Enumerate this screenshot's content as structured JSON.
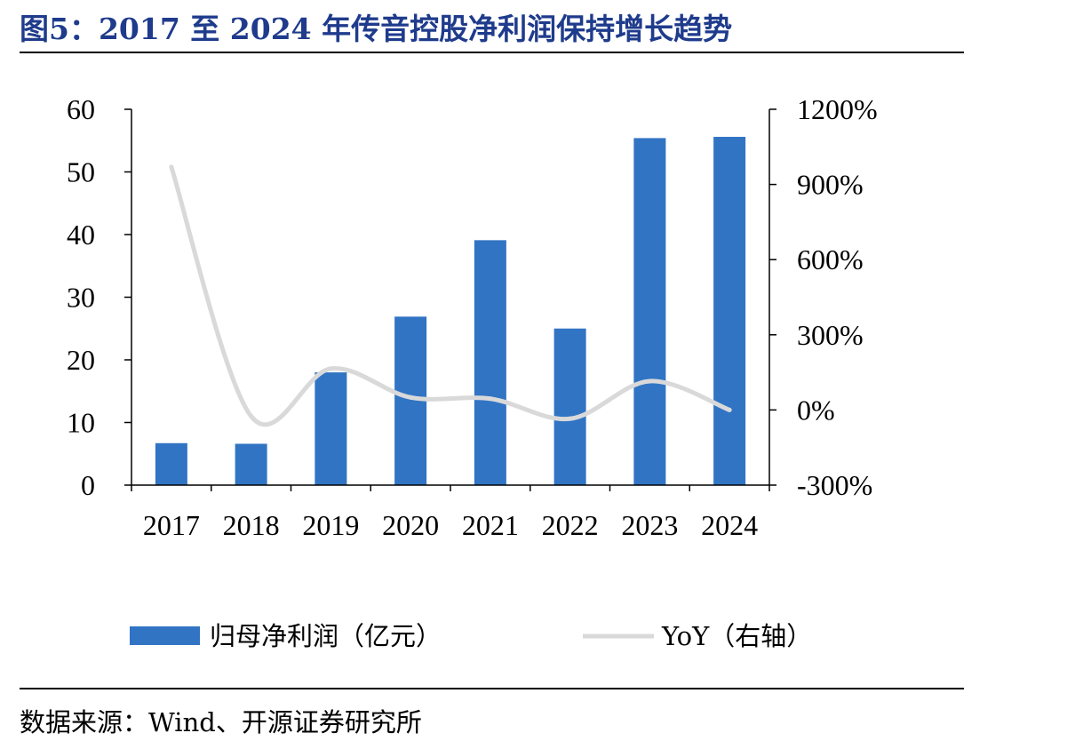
{
  "title": "图5：2017 至 2024 年传音控股净利润保持增长趋势",
  "source": "数据来源：Wind、开源证券研究所",
  "chart_data": {
    "type": "bar",
    "categories": [
      "2017",
      "2018",
      "2019",
      "2020",
      "2021",
      "2022",
      "2023",
      "2024"
    ],
    "series": [
      {
        "name": "归母净利润（亿元）",
        "type": "bar",
        "axis": "left",
        "color": "#3174c4",
        "values": [
          6.7,
          6.6,
          18.0,
          26.9,
          39.1,
          25.0,
          55.4,
          55.6
        ]
      },
      {
        "name": "YoY（右轴）",
        "type": "line",
        "axis": "right",
        "color": "#d9d9d9",
        "values": [
          970,
          -25,
          165,
          50,
          45,
          -35,
          115,
          0
        ]
      }
    ],
    "y_left": {
      "min": 0,
      "max": 60,
      "ticks": [
        "0",
        "10",
        "20",
        "30",
        "40",
        "50",
        "60"
      ]
    },
    "y_right": {
      "min": -300,
      "max": 1200,
      "ticks": [
        "-300%",
        "0%",
        "300%",
        "600%",
        "900%",
        "1200%"
      ]
    },
    "legend_position": "bottom",
    "grid": false
  }
}
